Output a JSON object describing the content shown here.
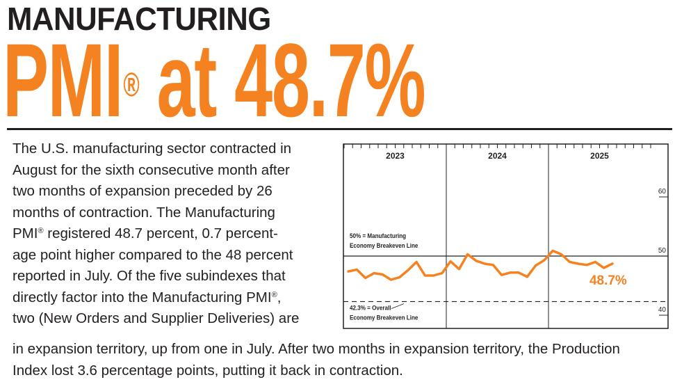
{
  "header": {
    "title_line1": "MANUFACTURING",
    "title_line2": "PMI",
    "title_line2_mark": "®",
    "title_line2_suffix": " at 48.7%"
  },
  "body": {
    "column_lines": [
      "The U.S. manufacturing sector contracted in",
      "August for the sixth consecutive month after",
      "two months of expansion preceded by 26",
      "months of contraction. The Manufacturing",
      "PMI|®| registered 48.7 percent, 0.7 percent-",
      "age point higher compared to the 48 percent",
      "reported in July. Of the five subindexes that",
      "directly factor into the Manufacturing PMI|®|,",
      "two (New Orders and Supplier Deliveries) are"
    ],
    "wide_lines": [
      "in expansion territory, up from one in July. After two months in expansion territory, the Production",
      "Index lost 3.6 percentage points, putting it back in contraction."
    ]
  },
  "chart_data": {
    "type": "line",
    "title": "",
    "years": [
      "2023",
      "2024",
      "2025"
    ],
    "months_per_year": 12,
    "series": [
      {
        "name": "Manufacturing PMI",
        "color": "#f58220",
        "values": [
          47.4,
          47.7,
          46.3,
          47.1,
          46.9,
          46.0,
          46.4,
          47.6,
          49.0,
          46.7,
          46.7,
          47.1,
          49.1,
          47.8,
          50.3,
          49.2,
          48.7,
          48.5,
          46.8,
          47.2,
          47.2,
          46.5,
          48.4,
          49.3,
          50.9,
          50.3,
          49.0,
          48.7,
          48.5,
          49.0,
          48.0,
          48.7
        ]
      }
    ],
    "ylim": [
      38,
      66
    ],
    "y_ticks": [
      40,
      50,
      60
    ],
    "x_ticks_per_year": 12,
    "reference_lines": [
      {
        "value": 50,
        "style": "solid",
        "label_line1": "50% = Manufacturing",
        "label_line2": "Economy Breakeven Line"
      },
      {
        "value": 42.3,
        "style": "dashed",
        "label_line1": "42.3% = Overall",
        "label_line2": "Economy Breakeven Line"
      }
    ],
    "callout": {
      "text": "48.7%",
      "color": "#f58220"
    }
  }
}
